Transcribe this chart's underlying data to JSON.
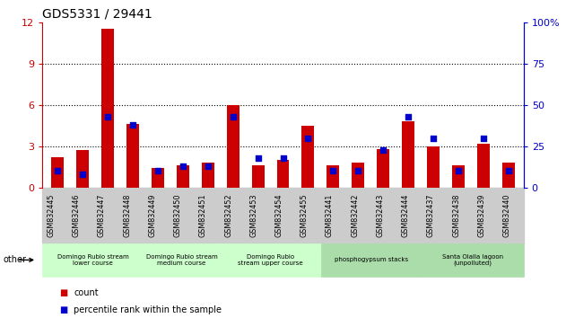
{
  "title": "GDS5331 / 29441",
  "samples": [
    "GSM832445",
    "GSM832446",
    "GSM832447",
    "GSM832448",
    "GSM832449",
    "GSM832450",
    "GSM832451",
    "GSM832452",
    "GSM832453",
    "GSM832454",
    "GSM832455",
    "GSM832441",
    "GSM832442",
    "GSM832443",
    "GSM832444",
    "GSM832437",
    "GSM832438",
    "GSM832439",
    "GSM832440"
  ],
  "count_values": [
    2.2,
    2.7,
    11.5,
    4.6,
    1.4,
    1.6,
    1.8,
    6.0,
    1.6,
    2.0,
    4.5,
    1.6,
    1.8,
    2.8,
    4.8,
    3.0,
    1.6,
    3.2,
    1.8
  ],
  "percentile_values": [
    10,
    8,
    43,
    38,
    10,
    13,
    13,
    43,
    18,
    18,
    30,
    10,
    10,
    23,
    43,
    30,
    10,
    30,
    10
  ],
  "groups": [
    {
      "label": "Domingo Rubio stream\nlower course",
      "start": 0,
      "end": 3,
      "color": "#ccffcc"
    },
    {
      "label": "Domingo Rubio stream\nmedium course",
      "start": 4,
      "end": 6,
      "color": "#ccffcc"
    },
    {
      "label": "Domingo Rubio\nstream upper course",
      "start": 7,
      "end": 10,
      "color": "#ccffcc"
    },
    {
      "label": "phosphogypsum stacks",
      "start": 11,
      "end": 14,
      "color": "#aaddaa"
    },
    {
      "label": "Santa Olalla lagoon\n(unpolluted)",
      "start": 15,
      "end": 18,
      "color": "#aaddaa"
    }
  ],
  "ylim_left": [
    0,
    12
  ],
  "ylim_right": [
    0,
    100
  ],
  "yticks_left": [
    0,
    3,
    6,
    9,
    12
  ],
  "yticks_right": [
    0,
    25,
    50,
    75,
    100
  ],
  "bar_color": "#cc0000",
  "dot_color": "#0000cc",
  "gray_bg": "#cccccc",
  "left_axis_color": "#cc0000",
  "right_axis_color": "#0000cc",
  "legend_count_label": "count",
  "legend_pct_label": "percentile rank within the sample",
  "bar_width": 0.5,
  "dot_size": 18
}
